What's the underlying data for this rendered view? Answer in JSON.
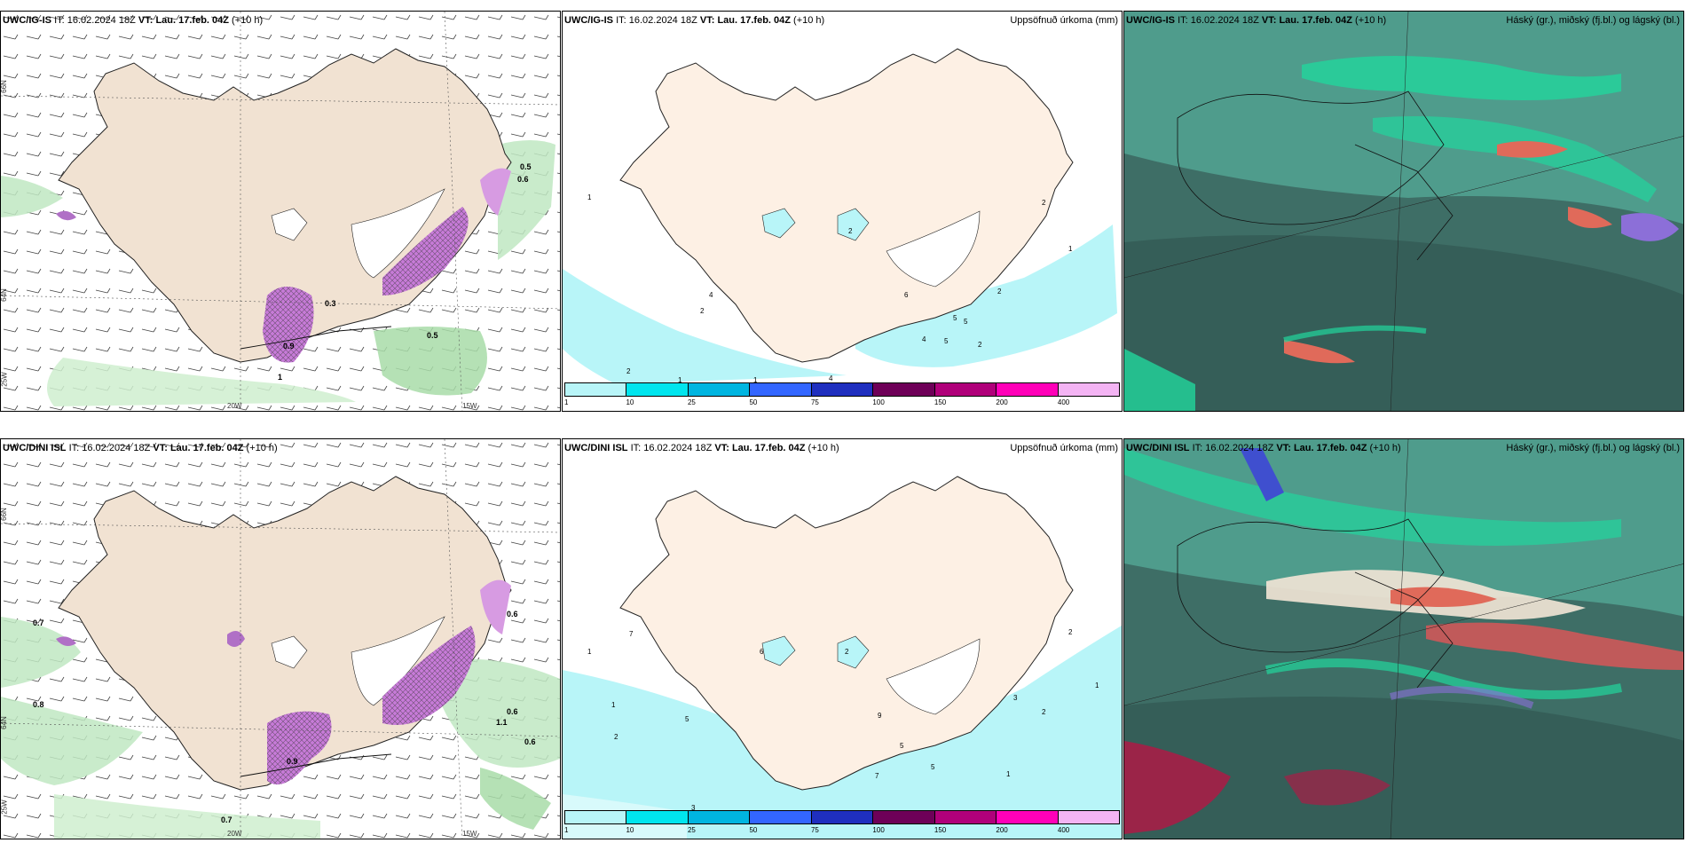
{
  "panels": [
    {
      "model": "UWC/IG-IS",
      "it_label": "IT:",
      "it": "16.02.2024 18Z",
      "vt_label": "VT:",
      "vt": "Lau. 17.feb. 04Z",
      "lead": "(+10 h)",
      "title_right": ""
    },
    {
      "model": "UWC/IG-IS",
      "it_label": "IT:",
      "it": "16.02.2024 18Z",
      "vt_label": "VT:",
      "vt": "Lau. 17.feb. 04Z",
      "lead": "(+10 h)",
      "title_right": "Uppsöfnuð úrkoma (mm)"
    },
    {
      "model": "UWC/IG-IS",
      "it_label": "IT:",
      "it": "16.02.2024 18Z",
      "vt_label": "VT:",
      "vt": "Lau. 17.feb. 04Z",
      "lead": "(+10 h)",
      "title_right": "Háský (gr.), miðský (fj.bl.) og lágský (bl.)"
    },
    {
      "model": "UWC/DINI ISL",
      "it_label": "IT:",
      "it": "16.02.2024 18Z",
      "vt_label": "VT:",
      "vt": "Lau. 17.feb. 04Z",
      "lead": "(+10 h)",
      "title_right": ""
    },
    {
      "model": "UWC/DINI ISL",
      "it_label": "IT:",
      "it": "16.02.2024 18Z",
      "vt_label": "VT:",
      "vt": "Lau. 17.feb. 04Z",
      "lead": "(+10 h)",
      "title_right": "Uppsöfnuð úrkoma (mm)"
    },
    {
      "model": "UWC/DINI ISL",
      "it_label": "IT:",
      "it": "16.02.2024 18Z",
      "vt_label": "VT:",
      "vt": "Lau. 17.feb. 04Z",
      "lead": "(+10 h)",
      "title_right": "Háský (gr.), miðský (fj.bl.) og lágský (bl.)"
    }
  ],
  "axis_labels": {
    "lon_20w": "20W",
    "lon_15w": "15W",
    "lat_66n": "66N",
    "lat_64n": "64N",
    "lat_25w": "25W"
  },
  "colorbar": {
    "ticks": [
      "1",
      "10",
      "25",
      "50",
      "75",
      "100",
      "150",
      "200",
      "400"
    ],
    "colors": [
      "#b8f5f8",
      "#00e5ee",
      "#00b5e0",
      "#3366ff",
      "#1f2fbf",
      "#6e0058",
      "#b0007a",
      "#ff00b8",
      "#f4b4f4"
    ]
  },
  "wind_labels_top": [
    "0.5",
    "0.6",
    "0.5",
    "0.3",
    "0.9",
    "1"
  ],
  "wind_labels_bottom": [
    "0.7",
    "0.8",
    "0.6",
    "0.6",
    "1.1",
    "0.9",
    "0.6",
    "0.7"
  ],
  "precip_labels_top": [
    "1",
    "2",
    "2",
    "4",
    "2",
    "6",
    "5",
    "5",
    "4",
    "5",
    "2",
    "2",
    "1",
    "2",
    "1",
    "1",
    "4"
  ],
  "precip_labels_bottom": [
    "1",
    "2",
    "7",
    "5",
    "1",
    "6",
    "2",
    "9",
    "5",
    "7",
    "5",
    "1",
    "2",
    "3",
    "2",
    "1",
    "3"
  ]
}
